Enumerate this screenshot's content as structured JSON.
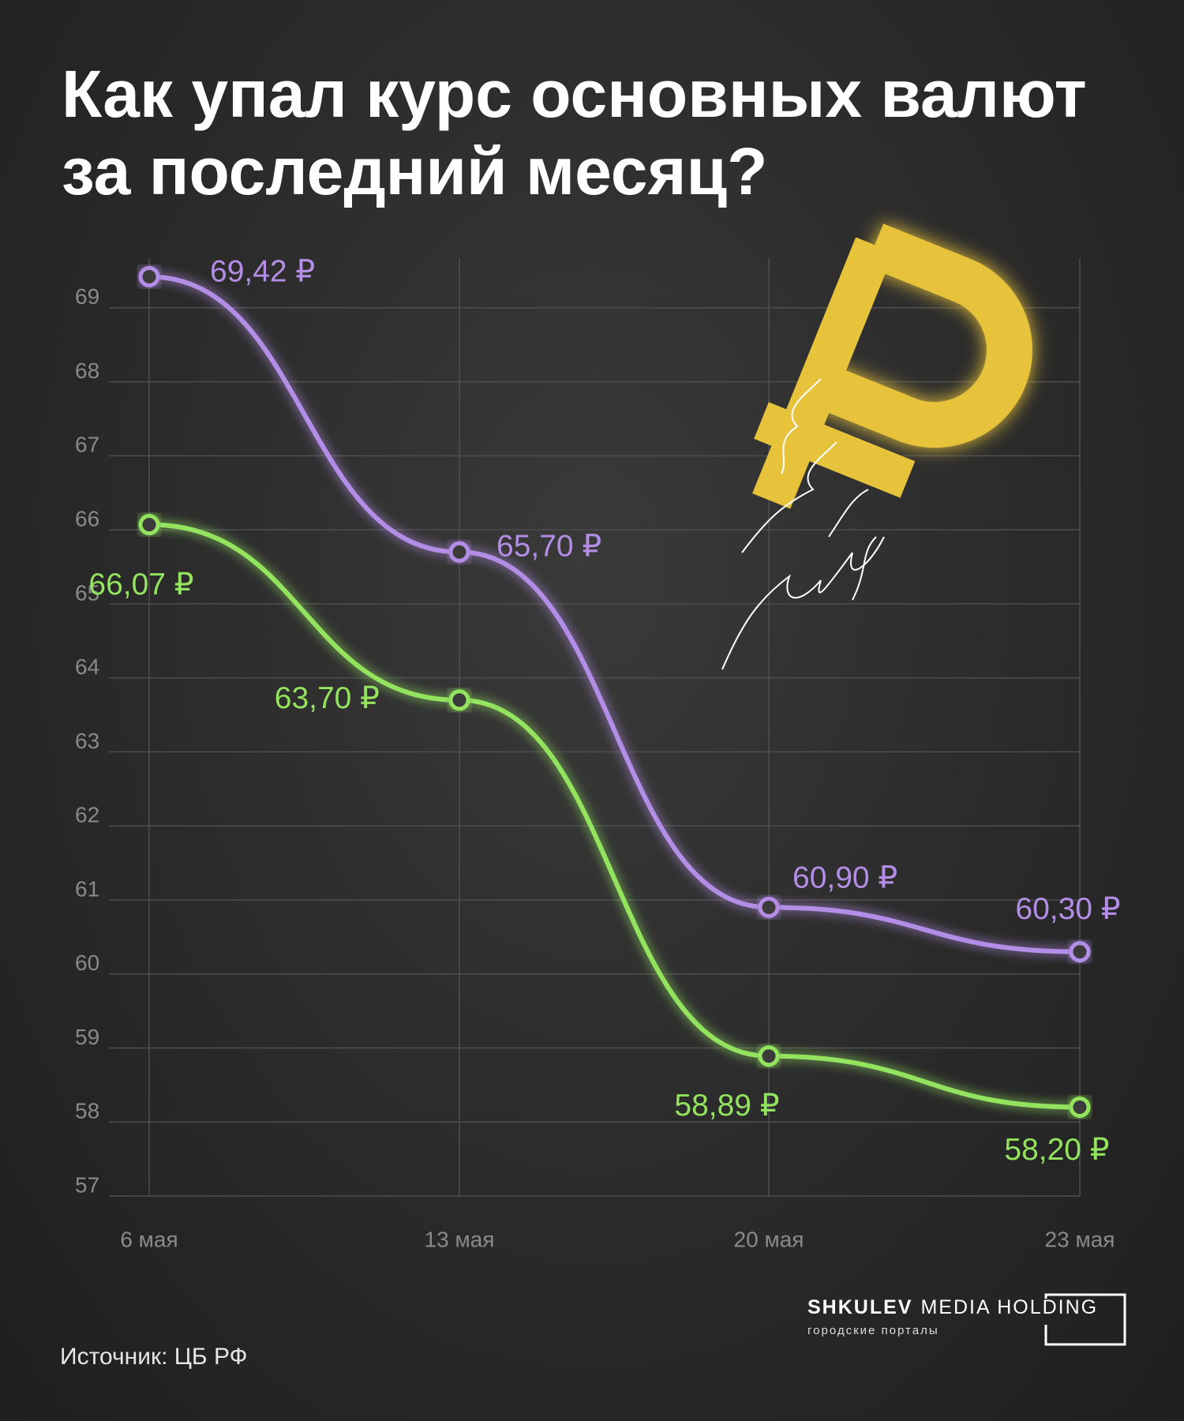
{
  "chart_data": {
    "type": "line",
    "title": "Как упал курс основных валют за последний месяц?",
    "categories": [
      "6 мая",
      "13 мая",
      "20 мая",
      "23 мая"
    ],
    "series": [
      {
        "color": "#b48ee6",
        "values": [
          69.42,
          65.7,
          60.9,
          60.3
        ],
        "value_labels": [
          "69,42 ₽",
          "65,70 ₽",
          "60,90 ₽",
          "60,30 ₽"
        ]
      },
      {
        "color": "#93e35f",
        "values": [
          66.07,
          63.7,
          58.89,
          58.2
        ],
        "value_labels": [
          "66,07 ₽",
          "63,70 ₽",
          "58,89 ₽",
          "58,20 ₽"
        ]
      }
    ],
    "ylim": [
      57,
      69.67
    ],
    "yticks": [
      57,
      58,
      59,
      60,
      61,
      62,
      63,
      64,
      65,
      66,
      67,
      68,
      69
    ],
    "grid": true
  },
  "footer": {
    "source": "Источник: ЦБ РФ",
    "brand": "SHKULEV",
    "brand_rest": "MEDIA HOLDING",
    "tagline": "городские порталы"
  }
}
